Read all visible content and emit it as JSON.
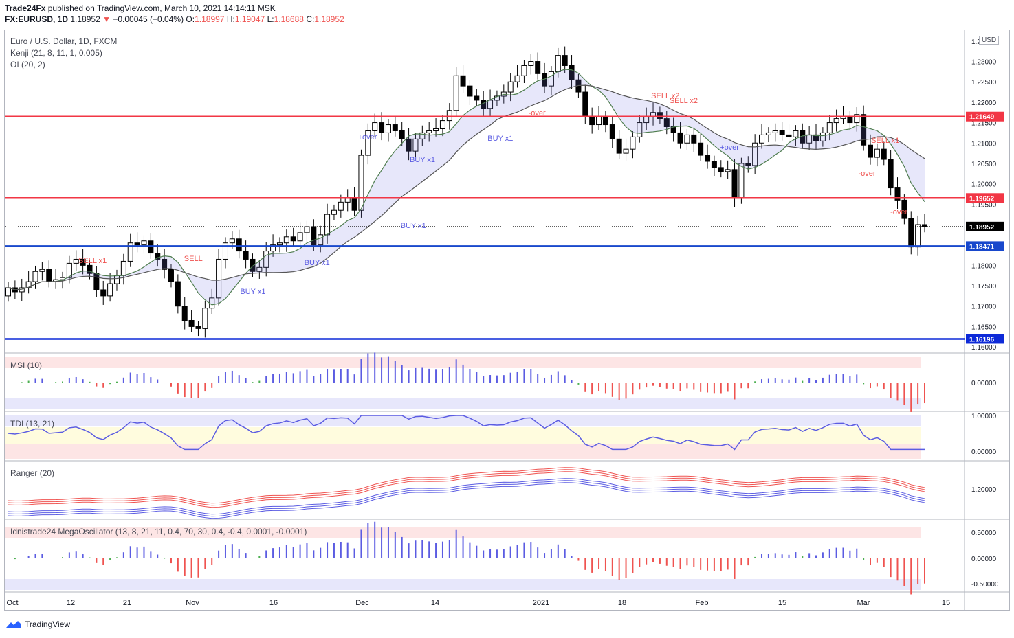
{
  "header": {
    "author": "Trade24Fx",
    "published": "published on TradingView.com, March 10, 2021 14:14:11 MSK",
    "symbol": "FX:EURUSD, 1D",
    "last": "1.18952",
    "change": "−0.00045 (−0.04%)",
    "o_label": "O:",
    "o": "1.18997",
    "h_label": "H:",
    "h": "1.19047",
    "l_label": "L:",
    "l": "1.18688",
    "c_label": "C:",
    "c": "1.18952"
  },
  "legend": {
    "title": "Euro / U.S. Dollar, 1D, FXCM",
    "kenji": "Kenji (21, 8, 11, 1, 0.005)",
    "oi": "OI (20, 2)",
    "msi": "MSI (10)",
    "tdi": "TDI (13, 21)",
    "ranger": "Ranger (20)",
    "mega": "Idnistrade24 MegaOscillator (13, 8, 21, 11, 0.4, 70, 30, 0.4, -0.4, 0.0001, -0.0001)"
  },
  "currency": "USD",
  "footer": {
    "brand": "TradingView"
  },
  "colors": {
    "red_level": "#f23645",
    "blue_level": "#1848cc",
    "navy_level": "#0d2ad8",
    "bull": "#ffffff",
    "bear": "#000000",
    "marker_blue": "#5b5ce2",
    "marker_red": "#ef5350"
  },
  "chart_data": {
    "type": "candlestick",
    "y_ticks": [
      "1.23500",
      "1.23000",
      "1.22500",
      "1.22000",
      "1.21500",
      "1.21000",
      "1.20500",
      "1.20000",
      "1.19500",
      "1.19000",
      "1.18500",
      "1.18000",
      "1.17500",
      "1.17000",
      "1.16500",
      "1.16000"
    ],
    "ylim": [
      1.1585,
      1.2375
    ],
    "x_ticks": [
      "Oct",
      "12",
      "21",
      "Nov",
      "16",
      "Dec",
      "14",
      "2021",
      "18",
      "Feb",
      "15",
      "Mar",
      "15"
    ],
    "levels": [
      {
        "label": "1.21649",
        "value": 1.21649,
        "color": "#f23645"
      },
      {
        "label": "1.19652",
        "value": 1.19652,
        "color": "#f23645"
      },
      {
        "label": "1.18952",
        "value": 1.18952,
        "color": "#000000"
      },
      {
        "label": "1.18471",
        "value": 1.18471,
        "color": "#1848cc"
      },
      {
        "label": "1.16196",
        "value": 1.16196,
        "color": "#0d2ad8"
      }
    ],
    "close_series": [
      1.1745,
      1.1735,
      1.1745,
      1.176,
      1.1785,
      1.179,
      1.176,
      1.1765,
      1.177,
      1.1805,
      1.1815,
      1.18,
      1.178,
      1.174,
      1.1725,
      1.1755,
      1.1775,
      1.181,
      1.1855,
      1.185,
      1.186,
      1.183,
      1.1815,
      1.179,
      1.176,
      1.17,
      1.1665,
      1.165,
      1.1645,
      1.1695,
      1.172,
      1.1815,
      1.1855,
      1.1865,
      1.1835,
      1.1815,
      1.1785,
      1.1795,
      1.1835,
      1.185,
      1.1855,
      1.187,
      1.186,
      1.188,
      1.1895,
      1.185,
      1.1875,
      1.1925,
      1.1935,
      1.1955,
      1.1965,
      1.1935,
      1.207,
      1.213,
      1.215,
      1.2125,
      1.2145,
      1.213,
      1.211,
      1.208,
      1.211,
      1.2125,
      1.213,
      1.2135,
      1.2155,
      1.218,
      1.2265,
      1.224,
      1.2215,
      1.2205,
      1.2185,
      1.2205,
      1.2215,
      1.2225,
      1.225,
      1.2265,
      1.229,
      1.23,
      1.227,
      1.224,
      1.2275,
      1.2315,
      1.229,
      1.2255,
      1.2225,
      1.2165,
      1.2145,
      1.2165,
      1.2145,
      1.211,
      1.2075,
      1.2085,
      1.2115,
      1.215,
      1.2165,
      1.2175,
      1.216,
      1.214,
      1.2125,
      1.21,
      1.212,
      1.21,
      1.207,
      1.2055,
      1.204,
      1.203,
      1.2035,
      1.1965,
      1.205,
      1.2045,
      1.21,
      1.212,
      1.2125,
      1.213,
      1.212,
      1.2115,
      1.213,
      1.21,
      1.212,
      1.2105,
      1.2125,
      1.215,
      1.216,
      1.2165,
      1.215,
      1.217,
      1.2095,
      1.2065,
      1.2085,
      1.206,
      1.199,
      1.196,
      1.1915,
      1.1845,
      1.19,
      1.1895
    ],
    "signals": [
      "SELL",
      "BUY x1",
      "BUY x1",
      "BUY x1",
      "BUY x1",
      "BUY x1",
      "SELL x2",
      "SELL x2",
      "SELL x1",
      "SELL x1",
      "+over",
      "-over",
      "+over",
      "-over",
      "-over"
    ],
    "panes": [
      {
        "name": "MSI (10)",
        "ticks": [
          "0.00000"
        ]
      },
      {
        "name": "TDI (13, 21)",
        "ticks": [
          "1.00000",
          "0.00000"
        ]
      },
      {
        "name": "Ranger (20)",
        "ticks": [
          "1.20000"
        ]
      },
      {
        "name": "Idnistrade24 MegaOscillator",
        "ticks": [
          "0.50000",
          "0.00000",
          "-0.50000"
        ]
      }
    ]
  }
}
